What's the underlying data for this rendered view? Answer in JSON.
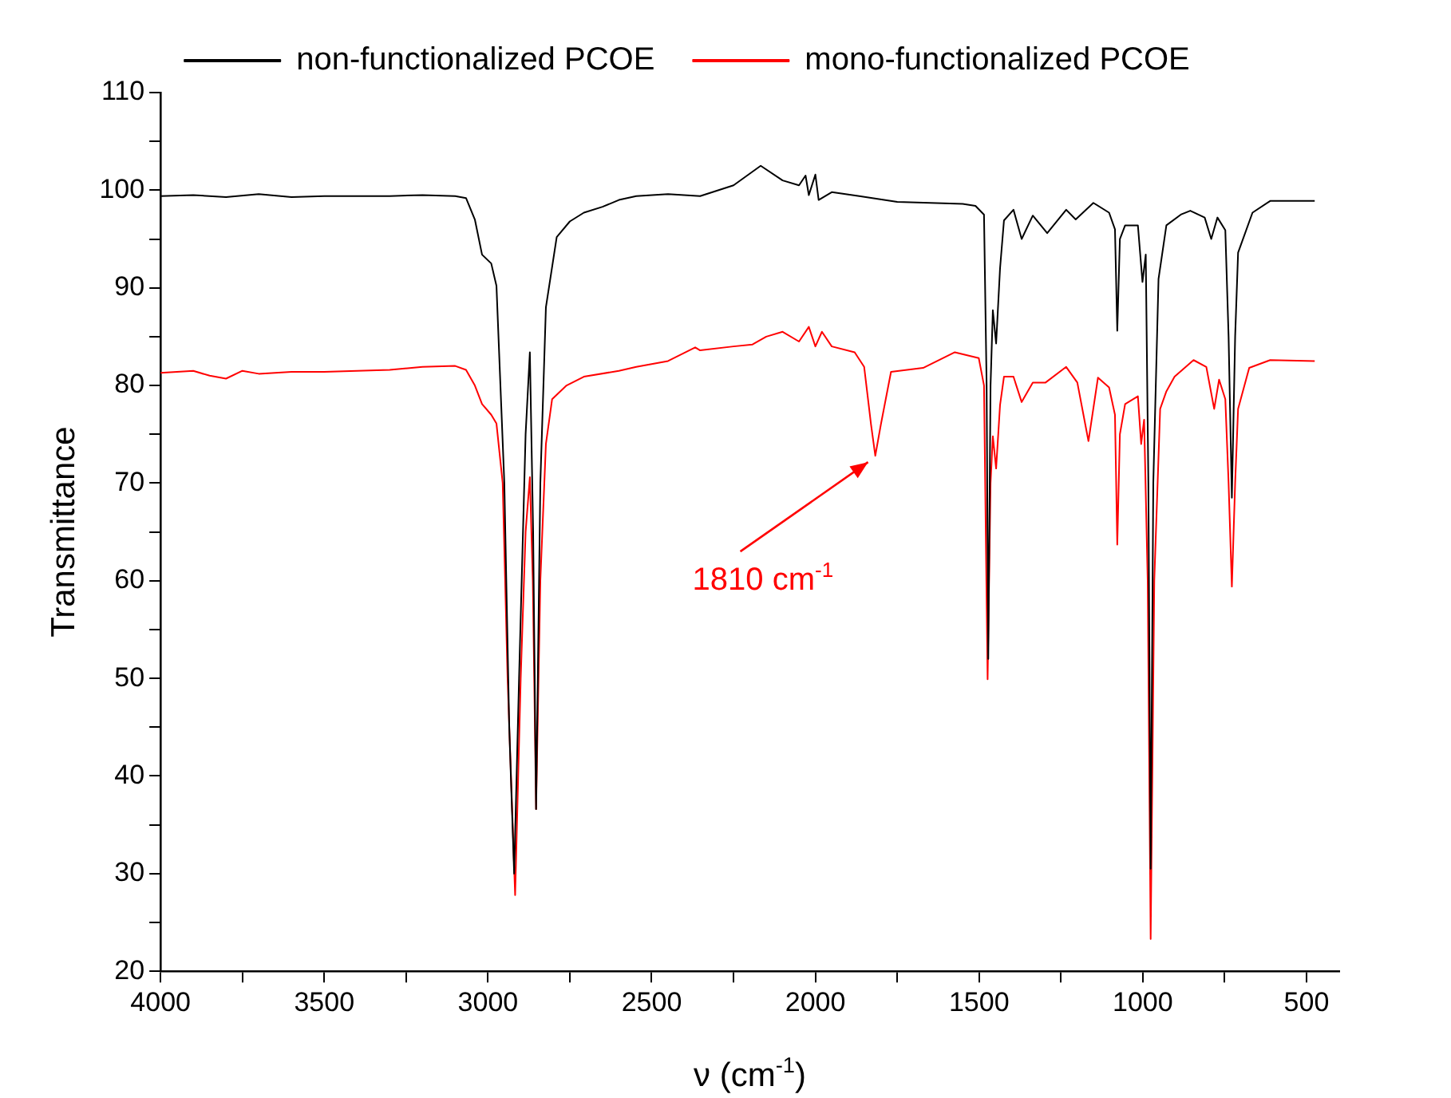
{
  "chart_data": {
    "type": "line",
    "xlabel": "ν (cm$^{-1}$)",
    "ylabel": "Transmittance",
    "xlim": [
      4000,
      400
    ],
    "ylim": [
      20,
      110
    ],
    "xticks": [
      4000,
      {
        "value": 3750,
        "label": null
      },
      3500,
      {
        "value": 3250,
        "label": null
      },
      3000,
      {
        "value": 2750,
        "label": null
      },
      2500,
      {
        "value": 2250,
        "label": null
      },
      2000,
      {
        "value": 1750,
        "label": null
      },
      1500,
      {
        "value": 1250,
        "label": null
      },
      1000,
      {
        "value": 750,
        "label": null
      },
      500
    ],
    "yticks": [
      20,
      {
        "value": 25,
        "label": null
      },
      30,
      {
        "value": 35,
        "label": null
      },
      40,
      {
        "value": 45,
        "label": null
      },
      50,
      {
        "value": 55,
        "label": null
      },
      60,
      {
        "value": 65,
        "label": null
      },
      70,
      {
        "value": 75,
        "label": null
      },
      80,
      {
        "value": 85,
        "label": null
      },
      90,
      {
        "value": 95,
        "label": null
      },
      100,
      {
        "value": 105,
        "label": null
      },
      110
    ],
    "legend": "top",
    "annotations": [
      {
        "text": "1810 cm$^{-1}$",
        "x": 1810,
        "y": 72.8
      }
    ],
    "series": [
      {
        "name": "non-functionalized PCOE",
        "color": "#000000",
        "x": [
          4000,
          3900,
          3800,
          3700,
          3600,
          3500,
          3400,
          3300,
          3200,
          3100,
          3067,
          3040,
          3018,
          2990,
          2974,
          2950,
          2935,
          2920,
          2905,
          2885,
          2872,
          2862,
          2853,
          2840,
          2823,
          2790,
          2750,
          2707,
          2650,
          2600,
          2547,
          2450,
          2352,
          2250,
          2167,
          2100,
          2050,
          2030,
          2020,
          2000,
          1990,
          1950,
          1866,
          1750,
          1650,
          1550,
          1511,
          1485,
          1477,
          1472,
          1465,
          1458,
          1448,
          1436,
          1424,
          1395,
          1370,
          1336,
          1292,
          1234,
          1205,
          1151,
          1103,
          1085,
          1078,
          1070,
          1054,
          1015,
          1001,
          991,
          983,
          976,
          968,
          952,
          928,
          884,
          855,
          811,
          791,
          772,
          748,
          738,
          728,
          718,
          709,
          665,
          611,
          475
        ],
        "values": [
          99.4,
          99.5,
          99.3,
          99.6,
          99.3,
          99.4,
          99.4,
          99.4,
          99.5,
          99.4,
          99.2,
          97,
          93.4,
          92.5,
          90.2,
          70,
          45,
          30,
          50,
          75,
          83.4,
          65,
          36.6,
          70,
          88,
          95.2,
          96.8,
          97.7,
          98.3,
          99,
          99.4,
          99.6,
          99.4,
          100.5,
          102.5,
          101,
          100.5,
          101.5,
          99.5,
          101.6,
          99,
          99.8,
          99.4,
          98.8,
          98.7,
          98.6,
          98.4,
          97.5,
          80,
          52,
          80,
          87.7,
          84.3,
          92,
          96.9,
          98,
          95,
          97.4,
          95.6,
          98,
          97,
          98.7,
          97.7,
          96,
          85.6,
          95,
          96.4,
          96.4,
          90.6,
          93.4,
          70,
          30.5,
          70,
          90.9,
          96.4,
          97.5,
          97.9,
          97.2,
          95,
          97.2,
          95.9,
          85,
          68.5,
          85,
          93.6,
          97.7,
          98.9,
          98.9
        ]
      },
      {
        "name": "mono-functionalized PCOE",
        "color": "#ff0000",
        "x": [
          4000,
          3900,
          3850,
          3800,
          3750,
          3700,
          3600,
          3500,
          3400,
          3300,
          3200,
          3100,
          3067,
          3040,
          3018,
          2990,
          2974,
          2955,
          2940,
          2917,
          2900,
          2885,
          2872,
          2863,
          2853,
          2840,
          2823,
          2804,
          2760,
          2707,
          2600,
          2547,
          2450,
          2367,
          2352,
          2250,
          2192,
          2150,
          2100,
          2050,
          2020,
          2000,
          1980,
          1950,
          1880,
          1851,
          1830,
          1817,
          1800,
          1769,
          1671,
          1574,
          1501,
          1485,
          1474,
          1465,
          1458,
          1448,
          1436,
          1424,
          1395,
          1370,
          1336,
          1297,
          1234,
          1200,
          1166,
          1137,
          1103,
          1085,
          1078,
          1070,
          1054,
          1015,
          1005,
          996,
          985,
          976,
          965,
          947,
          928,
          903,
          845,
          806,
          782,
          767,
          748,
          738,
          728,
          718,
          709,
          675,
          611,
          475
        ],
        "values": [
          81.3,
          81.5,
          81,
          80.7,
          81.5,
          81.2,
          81.4,
          81.4,
          81.5,
          81.6,
          81.9,
          82,
          81.6,
          80,
          78.1,
          77,
          76.1,
          70,
          50,
          27.8,
          50,
          65,
          70.6,
          60,
          36.6,
          60,
          74,
          78.6,
          80,
          80.9,
          81.5,
          81.9,
          82.5,
          83.9,
          83.6,
          84,
          84.2,
          85,
          85.5,
          84.5,
          86,
          84,
          85.5,
          84,
          83.4,
          81.9,
          76,
          72.8,
          76,
          81.4,
          81.8,
          83.4,
          82.8,
          80,
          49.9,
          70,
          74.8,
          71.5,
          78,
          80.9,
          80.9,
          78.3,
          80.3,
          80.3,
          81.9,
          80.3,
          74.3,
          80.8,
          79.8,
          77,
          63.7,
          75,
          78.1,
          78.9,
          74,
          76.5,
          60,
          23.3,
          60,
          77.6,
          79.4,
          80.9,
          82.6,
          81.9,
          77.6,
          80.6,
          78.6,
          70,
          59.4,
          70,
          77.6,
          81.8,
          82.6,
          82.5
        ]
      }
    ]
  }
}
